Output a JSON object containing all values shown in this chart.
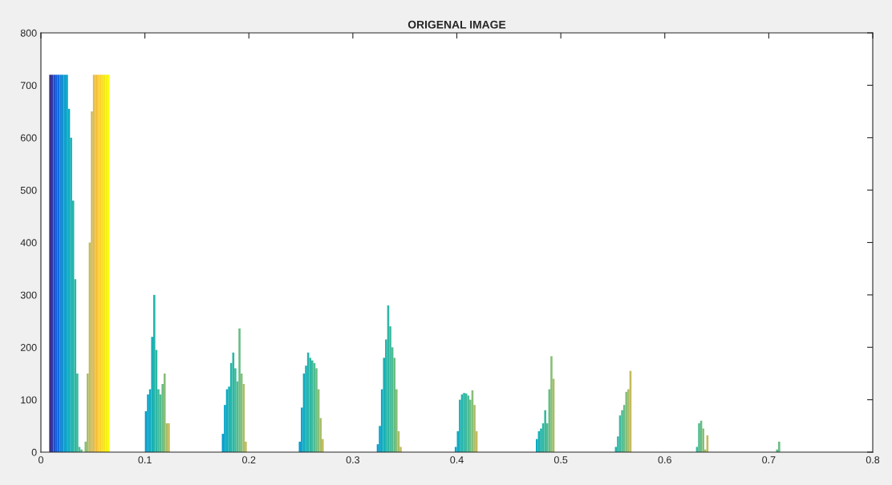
{
  "chart_data": {
    "type": "bar",
    "title": "ORIGENAL IMAGE",
    "x": [
      0.009,
      0.011,
      0.013,
      0.015,
      0.017,
      0.019,
      0.021,
      0.023,
      0.025,
      0.027,
      0.029,
      0.031,
      0.033,
      0.035,
      0.037,
      0.039,
      0.043,
      0.045,
      0.047,
      0.049,
      0.051,
      0.053,
      0.055,
      0.057,
      0.059,
      0.061,
      0.063,
      0.065,
      0.101,
      0.103,
      0.105,
      0.107,
      0.109,
      0.111,
      0.113,
      0.115,
      0.117,
      0.119,
      0.121,
      0.123,
      0.175,
      0.177,
      0.179,
      0.181,
      0.183,
      0.185,
      0.187,
      0.189,
      0.191,
      0.193,
      0.195,
      0.197,
      0.249,
      0.251,
      0.253,
      0.255,
      0.257,
      0.259,
      0.261,
      0.263,
      0.265,
      0.267,
      0.269,
      0.271,
      0.324,
      0.326,
      0.328,
      0.33,
      0.332,
      0.334,
      0.336,
      0.338,
      0.34,
      0.342,
      0.344,
      0.346,
      0.399,
      0.401,
      0.403,
      0.405,
      0.407,
      0.409,
      0.411,
      0.413,
      0.415,
      0.417,
      0.419,
      0.477,
      0.479,
      0.481,
      0.483,
      0.485,
      0.487,
      0.489,
      0.491,
      0.493,
      0.553,
      0.555,
      0.557,
      0.559,
      0.561,
      0.563,
      0.565,
      0.567,
      0.631,
      0.633,
      0.635,
      0.637,
      0.639,
      0.641,
      0.708,
      0.71
    ],
    "values": [
      720,
      720,
      720,
      720,
      720,
      720,
      720,
      720,
      720,
      655,
      600,
      480,
      330,
      150,
      10,
      5,
      20,
      150,
      400,
      650,
      720,
      720,
      720,
      720,
      720,
      720,
      720,
      720,
      78,
      110,
      120,
      220,
      300,
      195,
      120,
      110,
      130,
      150,
      55,
      55,
      35,
      90,
      120,
      125,
      170,
      190,
      160,
      135,
      236,
      150,
      130,
      20,
      20,
      85,
      150,
      165,
      190,
      180,
      175,
      170,
      160,
      120,
      65,
      25,
      15,
      50,
      120,
      180,
      215,
      280,
      240,
      200,
      180,
      120,
      40,
      10,
      10,
      40,
      100,
      110,
      113,
      112,
      108,
      100,
      118,
      90,
      40,
      25,
      40,
      45,
      55,
      80,
      55,
      120,
      183,
      140,
      10,
      30,
      70,
      80,
      90,
      115,
      120,
      155,
      10,
      55,
      60,
      45,
      5,
      32,
      5,
      20
    ],
    "colors": [
      "#352a87",
      "#2c3aa8",
      "#1f4ec9",
      "#0f5cdd",
      "#0d6ee0",
      "#1481d6",
      "#1290d0",
      "#0a9ccc",
      "#06a4ca",
      "#0caac0",
      "#18b0b4",
      "#22b4aa",
      "#2eb7a4",
      "#3cb99c",
      "#50bc90",
      "#5ebd88",
      "#87bf77",
      "#a8bd68",
      "#c4bb5d",
      "#d1bb59",
      "#e3bb4a",
      "#f3c03a",
      "#fec832",
      "#fcd22a",
      "#f7dc22",
      "#f5e61a",
      "#f6f015",
      "#f9fb0e",
      "#0a9ccc",
      "#06a4ca",
      "#0caac0",
      "#18b0b4",
      "#22b4aa",
      "#2eb7a4",
      "#3cb99c",
      "#50bc90",
      "#68bd84",
      "#87bf77",
      "#a8bd68",
      "#c4bb5d",
      "#0a9ccc",
      "#06a4ca",
      "#0caac0",
      "#18b0b4",
      "#22b4aa",
      "#2eb7a4",
      "#3cb99c",
      "#50bc90",
      "#68bd84",
      "#87bf77",
      "#a8bd68",
      "#c4bb5d",
      "#0a9ccc",
      "#06a4ca",
      "#0caac0",
      "#18b0b4",
      "#22b4aa",
      "#2eb7a4",
      "#3cb99c",
      "#50bc90",
      "#68bd84",
      "#87bf77",
      "#a8bd68",
      "#c4bb5d",
      "#0a9ccc",
      "#06a4ca",
      "#0caac0",
      "#18b0b4",
      "#22b4aa",
      "#2eb7a4",
      "#3cb99c",
      "#50bc90",
      "#68bd84",
      "#87bf77",
      "#a8bd68",
      "#c4bb5d",
      "#06a4ca",
      "#0caac0",
      "#18b0b4",
      "#22b4aa",
      "#2eb7a4",
      "#3cb99c",
      "#50bc90",
      "#68bd84",
      "#87bf77",
      "#a8bd68",
      "#c4bb5d",
      "#0caac0",
      "#18b0b4",
      "#22b4aa",
      "#2eb7a4",
      "#3cb99c",
      "#50bc90",
      "#68bd84",
      "#87bf77",
      "#a8bd68",
      "#22b4aa",
      "#2eb7a4",
      "#3cb99c",
      "#50bc90",
      "#68bd84",
      "#87bf77",
      "#a8bd68",
      "#c4bb5d",
      "#3cb99c",
      "#50bc90",
      "#68bd84",
      "#87bf77",
      "#a8bd68",
      "#c4bb5d",
      "#50bc90",
      "#68bd84"
    ],
    "xlim": [
      0,
      0.8
    ],
    "xticks": [
      0,
      0.1,
      0.2,
      0.3,
      0.4,
      0.5,
      0.6,
      0.7,
      0.8
    ],
    "ylim": [
      0,
      800
    ],
    "yticks": [
      0,
      100,
      200,
      300,
      400,
      500,
      600,
      700,
      800
    ],
    "grid": false,
    "legend": false
  }
}
